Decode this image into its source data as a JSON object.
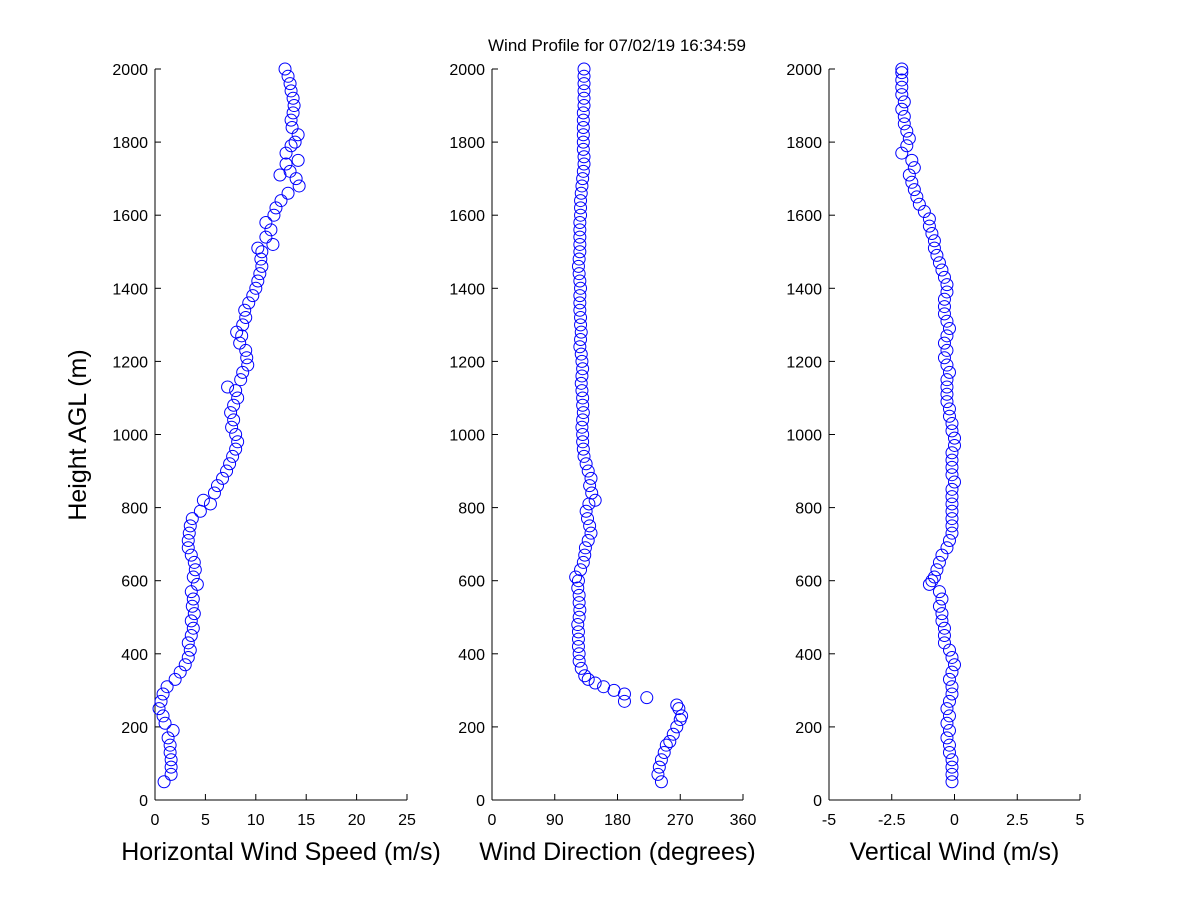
{
  "title": "Wind Profile for  07/02/19 16:34:59",
  "ylabel": "Height AGL (m)",
  "colors": {
    "marker": "#0000ff",
    "axis": "#000000",
    "background": "#ffffff"
  },
  "chart_data": [
    {
      "type": "scatter",
      "xlabel": "Horizontal Wind Speed (m/s)",
      "xlim": [
        0,
        25
      ],
      "ylim": [
        0,
        2000
      ],
      "xticks": [
        0,
        5,
        10,
        15,
        20,
        25
      ],
      "xtick_labels": [
        "0",
        "5",
        "10",
        "15",
        "20",
        "25"
      ],
      "yticks": [
        0,
        200,
        400,
        600,
        800,
        1000,
        1200,
        1400,
        1600,
        1800,
        2000
      ],
      "ytick_labels": [
        "0",
        "200",
        "400",
        "600",
        "800",
        "1000",
        "1200",
        "1400",
        "1600",
        "1800",
        "2000"
      ],
      "profile": [
        [
          50,
          0.9
        ],
        [
          70,
          1.6
        ],
        [
          90,
          1.6
        ],
        [
          110,
          1.6
        ],
        [
          130,
          1.5
        ],
        [
          150,
          1.5
        ],
        [
          170,
          1.3
        ],
        [
          190,
          1.8
        ],
        [
          210,
          1.0
        ],
        [
          230,
          0.8
        ],
        [
          250,
          0.4
        ],
        [
          270,
          0.6
        ],
        [
          290,
          0.8
        ],
        [
          310,
          1.2
        ],
        [
          330,
          2.0
        ],
        [
          350,
          2.5
        ],
        [
          370,
          3.0
        ],
        [
          390,
          3.3
        ],
        [
          410,
          3.5
        ],
        [
          430,
          3.3
        ],
        [
          450,
          3.6
        ],
        [
          470,
          3.8
        ],
        [
          490,
          3.6
        ],
        [
          510,
          3.9
        ],
        [
          530,
          3.7
        ],
        [
          550,
          3.8
        ],
        [
          570,
          3.6
        ],
        [
          590,
          4.2
        ],
        [
          610,
          3.8
        ],
        [
          630,
          4.0
        ],
        [
          650,
          3.9
        ],
        [
          670,
          3.6
        ],
        [
          690,
          3.3
        ],
        [
          710,
          3.3
        ],
        [
          730,
          3.4
        ],
        [
          750,
          3.5
        ],
        [
          770,
          3.7
        ],
        [
          790,
          4.5
        ],
        [
          810,
          5.5
        ],
        [
          820,
          4.8
        ],
        [
          840,
          5.9
        ],
        [
          860,
          6.2
        ],
        [
          880,
          6.7
        ],
        [
          900,
          7.1
        ],
        [
          920,
          7.4
        ],
        [
          940,
          7.7
        ],
        [
          960,
          8.0
        ],
        [
          980,
          8.2
        ],
        [
          1000,
          8.0
        ],
        [
          1020,
          7.6
        ],
        [
          1040,
          7.8
        ],
        [
          1060,
          7.5
        ],
        [
          1080,
          7.8
        ],
        [
          1100,
          8.2
        ],
        [
          1120,
          8.0
        ],
        [
          1130,
          7.2
        ],
        [
          1150,
          8.5
        ],
        [
          1170,
          8.7
        ],
        [
          1190,
          9.2
        ],
        [
          1210,
          9.1
        ],
        [
          1230,
          9.0
        ],
        [
          1250,
          8.4
        ],
        [
          1270,
          8.6
        ],
        [
          1280,
          8.1
        ],
        [
          1300,
          8.7
        ],
        [
          1320,
          9.0
        ],
        [
          1340,
          8.9
        ],
        [
          1360,
          9.3
        ],
        [
          1380,
          9.7
        ],
        [
          1400,
          10.0
        ],
        [
          1420,
          10.2
        ],
        [
          1440,
          10.4
        ],
        [
          1460,
          10.6
        ],
        [
          1480,
          10.5
        ],
        [
          1500,
          10.6
        ],
        [
          1510,
          10.2
        ],
        [
          1520,
          11.7
        ],
        [
          1540,
          11.0
        ],
        [
          1560,
          11.5
        ],
        [
          1580,
          11.0
        ],
        [
          1600,
          11.8
        ],
        [
          1620,
          12.0
        ],
        [
          1640,
          12.5
        ],
        [
          1660,
          13.2
        ],
        [
          1680,
          14.3
        ],
        [
          1700,
          14.0
        ],
        [
          1710,
          12.4
        ],
        [
          1720,
          13.4
        ],
        [
          1740,
          13.0
        ],
        [
          1750,
          14.2
        ],
        [
          1770,
          13.0
        ],
        [
          1790,
          13.5
        ],
        [
          1800,
          13.9
        ],
        [
          1820,
          14.2
        ],
        [
          1840,
          13.6
        ],
        [
          1860,
          13.5
        ],
        [
          1880,
          13.7
        ],
        [
          1900,
          13.8
        ],
        [
          1920,
          13.7
        ],
        [
          1940,
          13.5
        ],
        [
          1960,
          13.4
        ],
        [
          1980,
          13.2
        ],
        [
          2000,
          12.9
        ]
      ]
    },
    {
      "type": "scatter",
      "xlabel": "Wind Direction (degrees)",
      "xlim": [
        0,
        360
      ],
      "ylim": [
        0,
        2000
      ],
      "xticks": [
        0,
        90,
        180,
        270,
        360
      ],
      "xtick_labels": [
        "0",
        "90",
        "180",
        "270",
        "360"
      ],
      "yticks": [
        0,
        200,
        400,
        600,
        800,
        1000,
        1200,
        1400,
        1600,
        1800,
        2000
      ],
      "ytick_labels": [
        "0",
        "200",
        "400",
        "600",
        "800",
        "1000",
        "1200",
        "1400",
        "1600",
        "1800",
        "2000"
      ],
      "profile": [
        [
          50,
          243
        ],
        [
          70,
          238
        ],
        [
          90,
          240
        ],
        [
          110,
          243
        ],
        [
          130,
          247
        ],
        [
          150,
          250
        ],
        [
          160,
          255
        ],
        [
          180,
          260
        ],
        [
          200,
          265
        ],
        [
          220,
          270
        ],
        [
          230,
          272
        ],
        [
          250,
          268
        ],
        [
          260,
          265
        ],
        [
          270,
          190
        ],
        [
          280,
          222
        ],
        [
          290,
          190
        ],
        [
          300,
          175
        ],
        [
          310,
          160
        ],
        [
          320,
          148
        ],
        [
          330,
          138
        ],
        [
          340,
          133
        ],
        [
          360,
          128
        ],
        [
          380,
          125
        ],
        [
          400,
          125
        ],
        [
          420,
          124
        ],
        [
          440,
          124
        ],
        [
          460,
          124
        ],
        [
          480,
          123
        ],
        [
          500,
          125
        ],
        [
          520,
          126
        ],
        [
          540,
          125
        ],
        [
          560,
          125
        ],
        [
          580,
          123
        ],
        [
          600,
          124
        ],
        [
          610,
          120
        ],
        [
          630,
          127
        ],
        [
          650,
          131
        ],
        [
          670,
          133
        ],
        [
          690,
          134
        ],
        [
          710,
          138
        ],
        [
          730,
          142
        ],
        [
          750,
          140
        ],
        [
          770,
          137
        ],
        [
          790,
          135
        ],
        [
          810,
          139
        ],
        [
          820,
          148
        ],
        [
          840,
          143
        ],
        [
          860,
          140
        ],
        [
          880,
          142
        ],
        [
          900,
          138
        ],
        [
          920,
          135
        ],
        [
          940,
          132
        ],
        [
          960,
          131
        ],
        [
          980,
          130
        ],
        [
          1000,
          130
        ],
        [
          1020,
          129
        ],
        [
          1040,
          130
        ],
        [
          1060,
          131
        ],
        [
          1080,
          130
        ],
        [
          1100,
          130
        ],
        [
          1120,
          129
        ],
        [
          1140,
          128
        ],
        [
          1160,
          129
        ],
        [
          1180,
          130
        ],
        [
          1200,
          129
        ],
        [
          1220,
          128
        ],
        [
          1240,
          126
        ],
        [
          1260,
          127
        ],
        [
          1280,
          128
        ],
        [
          1300,
          127
        ],
        [
          1320,
          127
        ],
        [
          1340,
          126
        ],
        [
          1360,
          126
        ],
        [
          1380,
          126
        ],
        [
          1400,
          127
        ],
        [
          1420,
          126
        ],
        [
          1440,
          125
        ],
        [
          1460,
          124
        ],
        [
          1480,
          125
        ],
        [
          1500,
          126
        ],
        [
          1520,
          126
        ],
        [
          1540,
          126
        ],
        [
          1560,
          126
        ],
        [
          1580,
          126
        ],
        [
          1600,
          127
        ],
        [
          1620,
          127
        ],
        [
          1640,
          127
        ],
        [
          1660,
          128
        ],
        [
          1680,
          129
        ],
        [
          1700,
          130
        ],
        [
          1720,
          131
        ],
        [
          1740,
          132
        ],
        [
          1760,
          132
        ],
        [
          1780,
          131
        ],
        [
          1800,
          131
        ],
        [
          1820,
          131
        ],
        [
          1840,
          131
        ],
        [
          1860,
          131
        ],
        [
          1880,
          131
        ],
        [
          1900,
          132
        ],
        [
          1920,
          132
        ],
        [
          1940,
          132
        ],
        [
          1960,
          132
        ],
        [
          1980,
          132
        ],
        [
          2000,
          132
        ]
      ]
    },
    {
      "type": "scatter",
      "xlabel": "Vertical Wind (m/s)",
      "xlim": [
        -5,
        5
      ],
      "ylim": [
        0,
        2000
      ],
      "xticks": [
        -5,
        -2.5,
        0,
        2.5,
        5
      ],
      "xtick_labels": [
        "-5",
        "-2.5",
        "0",
        "2.5",
        "5"
      ],
      "yticks": [
        0,
        200,
        400,
        600,
        800,
        1000,
        1200,
        1400,
        1600,
        1800,
        2000
      ],
      "ytick_labels": [
        "0",
        "200",
        "400",
        "600",
        "800",
        "1000",
        "1200",
        "1400",
        "1600",
        "1800",
        "2000"
      ],
      "profile": [
        [
          50,
          -0.1
        ],
        [
          70,
          -0.1
        ],
        [
          90,
          -0.1
        ],
        [
          110,
          -0.1
        ],
        [
          130,
          -0.2
        ],
        [
          150,
          -0.2
        ],
        [
          170,
          -0.3
        ],
        [
          190,
          -0.2
        ],
        [
          210,
          -0.3
        ],
        [
          230,
          -0.2
        ],
        [
          250,
          -0.3
        ],
        [
          270,
          -0.2
        ],
        [
          290,
          -0.1
        ],
        [
          310,
          -0.1
        ],
        [
          330,
          -0.2
        ],
        [
          350,
          -0.1
        ],
        [
          370,
          0.0
        ],
        [
          390,
          -0.1
        ],
        [
          410,
          -0.2
        ],
        [
          430,
          -0.4
        ],
        [
          450,
          -0.4
        ],
        [
          470,
          -0.4
        ],
        [
          490,
          -0.5
        ],
        [
          510,
          -0.5
        ],
        [
          530,
          -0.6
        ],
        [
          550,
          -0.5
        ],
        [
          570,
          -0.6
        ],
        [
          590,
          -1.0
        ],
        [
          600,
          -0.9
        ],
        [
          610,
          -0.8
        ],
        [
          630,
          -0.7
        ],
        [
          650,
          -0.6
        ],
        [
          670,
          -0.5
        ],
        [
          690,
          -0.3
        ],
        [
          710,
          -0.2
        ],
        [
          730,
          -0.1
        ],
        [
          750,
          -0.1
        ],
        [
          770,
          -0.1
        ],
        [
          790,
          -0.1
        ],
        [
          810,
          -0.1
        ],
        [
          830,
          -0.1
        ],
        [
          850,
          -0.1
        ],
        [
          870,
          0.0
        ],
        [
          890,
          -0.1
        ],
        [
          910,
          -0.1
        ],
        [
          930,
          -0.1
        ],
        [
          950,
          -0.1
        ],
        [
          970,
          0.0
        ],
        [
          990,
          0.0
        ],
        [
          1010,
          -0.1
        ],
        [
          1030,
          -0.1
        ],
        [
          1050,
          -0.2
        ],
        [
          1070,
          -0.2
        ],
        [
          1090,
          -0.3
        ],
        [
          1110,
          -0.3
        ],
        [
          1130,
          -0.3
        ],
        [
          1150,
          -0.3
        ],
        [
          1170,
          -0.2
        ],
        [
          1190,
          -0.3
        ],
        [
          1210,
          -0.4
        ],
        [
          1230,
          -0.3
        ],
        [
          1250,
          -0.4
        ],
        [
          1270,
          -0.3
        ],
        [
          1290,
          -0.2
        ],
        [
          1310,
          -0.3
        ],
        [
          1330,
          -0.4
        ],
        [
          1350,
          -0.4
        ],
        [
          1370,
          -0.4
        ],
        [
          1390,
          -0.3
        ],
        [
          1410,
          -0.3
        ],
        [
          1430,
          -0.4
        ],
        [
          1450,
          -0.5
        ],
        [
          1470,
          -0.6
        ],
        [
          1490,
          -0.7
        ],
        [
          1510,
          -0.8
        ],
        [
          1530,
          -0.8
        ],
        [
          1550,
          -0.9
        ],
        [
          1570,
          -1.0
        ],
        [
          1590,
          -1.0
        ],
        [
          1610,
          -1.2
        ],
        [
          1630,
          -1.4
        ],
        [
          1650,
          -1.5
        ],
        [
          1670,
          -1.6
        ],
        [
          1690,
          -1.7
        ],
        [
          1710,
          -1.8
        ],
        [
          1730,
          -1.6
        ],
        [
          1750,
          -1.7
        ],
        [
          1770,
          -2.1
        ],
        [
          1790,
          -1.9
        ],
        [
          1810,
          -1.8
        ],
        [
          1830,
          -1.9
        ],
        [
          1850,
          -2.0
        ],
        [
          1870,
          -2.0
        ],
        [
          1890,
          -2.1
        ],
        [
          1910,
          -2.0
        ],
        [
          1930,
          -2.1
        ],
        [
          1950,
          -2.1
        ],
        [
          1970,
          -2.1
        ],
        [
          1990,
          -2.1
        ],
        [
          2000,
          -2.1
        ]
      ]
    }
  ]
}
